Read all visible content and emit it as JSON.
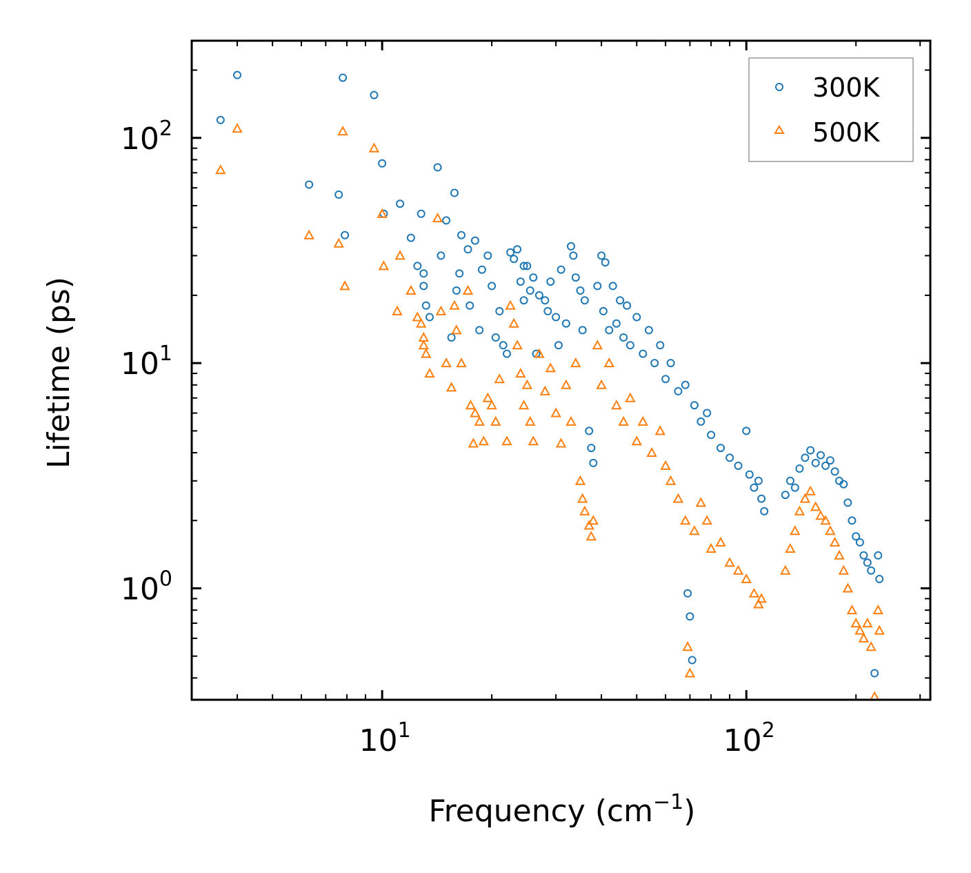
{
  "chart_data": {
    "type": "scatter",
    "xscale": "log",
    "yscale": "log",
    "xlabel": "Frequency (cm",
    "xlabel_sup": "−1",
    "xlabel_suffix": ")",
    "ylabel": "Lifetime (ps)",
    "xlim": [
      3.0,
      320
    ],
    "ylim": [
      0.32,
      270
    ],
    "x_ticks": [
      {
        "base": "10",
        "exp": "1",
        "value": 10
      },
      {
        "base": "10",
        "exp": "2",
        "value": 100
      }
    ],
    "y_ticks": [
      {
        "base": "10",
        "exp": "0",
        "value": 1
      },
      {
        "base": "10",
        "exp": "1",
        "value": 10
      },
      {
        "base": "10",
        "exp": "2",
        "value": 100
      }
    ],
    "legend": {
      "location": "top-right"
    },
    "series": [
      {
        "name": "300K",
        "marker": "circle",
        "color": "#1f77b4",
        "points": [
          [
            3.6,
            120
          ],
          [
            4.0,
            190
          ],
          [
            6.3,
            62
          ],
          [
            7.6,
            56
          ],
          [
            7.8,
            185
          ],
          [
            7.9,
            37
          ],
          [
            9.5,
            155
          ],
          [
            10.0,
            77
          ],
          [
            10.1,
            46
          ],
          [
            11.2,
            51
          ],
          [
            12.0,
            36
          ],
          [
            12.5,
            27
          ],
          [
            12.8,
            46
          ],
          [
            13.0,
            25
          ],
          [
            13.0,
            22
          ],
          [
            13.2,
            18
          ],
          [
            13.5,
            16
          ],
          [
            14.2,
            74
          ],
          [
            14.5,
            30
          ],
          [
            15.0,
            43
          ],
          [
            15.5,
            13
          ],
          [
            15.8,
            57
          ],
          [
            16.0,
            21
          ],
          [
            16.3,
            25
          ],
          [
            16.5,
            37
          ],
          [
            17.2,
            32
          ],
          [
            17.4,
            18
          ],
          [
            18.0,
            35
          ],
          [
            18.5,
            14
          ],
          [
            18.8,
            26
          ],
          [
            19.5,
            30
          ],
          [
            20.0,
            22
          ],
          [
            20.5,
            13
          ],
          [
            21.0,
            17
          ],
          [
            21.5,
            12
          ],
          [
            22.0,
            11
          ],
          [
            22.5,
            31
          ],
          [
            23.0,
            29
          ],
          [
            23.5,
            32
          ],
          [
            24.0,
            23
          ],
          [
            24.5,
            27
          ],
          [
            24.5,
            19
          ],
          [
            25.0,
            27
          ],
          [
            25.5,
            21
          ],
          [
            26.0,
            24
          ],
          [
            26.5,
            11
          ],
          [
            27.0,
            20
          ],
          [
            28.0,
            19
          ],
          [
            28.5,
            17
          ],
          [
            29.0,
            23
          ],
          [
            30.0,
            16
          ],
          [
            30.5,
            12
          ],
          [
            31.0,
            26
          ],
          [
            32.0,
            15
          ],
          [
            33.0,
            33
          ],
          [
            33.5,
            30
          ],
          [
            34.0,
            24
          ],
          [
            35.0,
            21
          ],
          [
            35.5,
            14
          ],
          [
            36.0,
            19
          ],
          [
            37.0,
            5.0
          ],
          [
            37.5,
            4.2
          ],
          [
            38.0,
            3.6
          ],
          [
            39.0,
            22
          ],
          [
            40.0,
            30
          ],
          [
            40.5,
            17
          ],
          [
            41.0,
            28
          ],
          [
            42.0,
            14
          ],
          [
            43.0,
            22
          ],
          [
            44.0,
            15
          ],
          [
            45.0,
            19
          ],
          [
            46.0,
            13
          ],
          [
            47.0,
            18
          ],
          [
            48.0,
            12
          ],
          [
            50.0,
            16
          ],
          [
            52.0,
            11
          ],
          [
            54.0,
            14
          ],
          [
            56.0,
            10
          ],
          [
            58.0,
            12
          ],
          [
            60.0,
            8.5
          ],
          [
            62.0,
            10
          ],
          [
            65.0,
            7.5
          ],
          [
            68.0,
            8
          ],
          [
            69.0,
            0.95
          ],
          [
            70.0,
            0.75
          ],
          [
            71.0,
            0.48
          ],
          [
            72.0,
            6.5
          ],
          [
            75.0,
            5.5
          ],
          [
            78.0,
            6.0
          ],
          [
            80.0,
            4.8
          ],
          [
            85.0,
            4.2
          ],
          [
            90.0,
            3.8
          ],
          [
            95.0,
            3.5
          ],
          [
            100.0,
            5.0
          ],
          [
            102.0,
            3.2
          ],
          [
            105.0,
            2.8
          ],
          [
            108.0,
            3.0
          ],
          [
            110.0,
            2.5
          ],
          [
            112.0,
            2.2
          ],
          [
            128.0,
            2.6
          ],
          [
            132.0,
            3.0
          ],
          [
            136.0,
            2.8
          ],
          [
            140.0,
            3.4
          ],
          [
            145.0,
            3.8
          ],
          [
            150.0,
            4.1
          ],
          [
            155.0,
            3.6
          ],
          [
            160.0,
            3.9
          ],
          [
            165.0,
            3.5
          ],
          [
            170.0,
            3.7
          ],
          [
            175.0,
            3.3
          ],
          [
            180.0,
            3.0
          ],
          [
            185.0,
            2.9
          ],
          [
            190.0,
            2.4
          ],
          [
            195.0,
            2.0
          ],
          [
            200.0,
            1.7
          ],
          [
            205.0,
            1.6
          ],
          [
            210.0,
            1.4
          ],
          [
            215.0,
            1.3
          ],
          [
            220.0,
            1.2
          ],
          [
            225.0,
            0.42
          ],
          [
            230.0,
            1.4
          ],
          [
            232.0,
            1.1
          ]
        ]
      },
      {
        "name": "500K",
        "marker": "triangle",
        "color": "#ff7f0e",
        "points": [
          [
            3.6,
            72
          ],
          [
            4.0,
            110
          ],
          [
            6.3,
            37
          ],
          [
            7.6,
            34
          ],
          [
            7.8,
            107
          ],
          [
            7.9,
            22
          ],
          [
            9.5,
            90
          ],
          [
            10.0,
            46
          ],
          [
            10.1,
            27
          ],
          [
            11.0,
            17
          ],
          [
            11.2,
            30
          ],
          [
            12.0,
            21
          ],
          [
            12.5,
            16
          ],
          [
            12.8,
            15
          ],
          [
            13.0,
            13
          ],
          [
            13.0,
            12
          ],
          [
            13.2,
            11
          ],
          [
            13.5,
            9.0
          ],
          [
            14.2,
            44
          ],
          [
            14.5,
            17
          ],
          [
            15.0,
            10
          ],
          [
            15.5,
            7.8
          ],
          [
            15.8,
            18
          ],
          [
            16.0,
            14
          ],
          [
            16.5,
            10
          ],
          [
            17.2,
            21
          ],
          [
            17.5,
            6.5
          ],
          [
            17.8,
            4.4
          ],
          [
            18.0,
            6.0
          ],
          [
            18.5,
            5.5
          ],
          [
            19.0,
            4.5
          ],
          [
            19.5,
            7.0
          ],
          [
            20.0,
            6.5
          ],
          [
            20.5,
            5.5
          ],
          [
            21.0,
            8.5
          ],
          [
            22.0,
            4.5
          ],
          [
            22.5,
            18
          ],
          [
            23.0,
            15
          ],
          [
            23.5,
            12
          ],
          [
            24.0,
            9
          ],
          [
            24.5,
            6.5
          ],
          [
            25.0,
            8
          ],
          [
            25.5,
            5.5
          ],
          [
            26.0,
            4.5
          ],
          [
            27.0,
            11
          ],
          [
            28.0,
            7.5
          ],
          [
            29.0,
            9.5
          ],
          [
            30.0,
            6
          ],
          [
            31.0,
            4.4
          ],
          [
            32.0,
            8
          ],
          [
            33.0,
            5.5
          ],
          [
            34.0,
            10
          ],
          [
            35.0,
            3.0
          ],
          [
            35.5,
            2.5
          ],
          [
            36.0,
            2.2
          ],
          [
            37.0,
            1.9
          ],
          [
            37.5,
            1.7
          ],
          [
            38.0,
            2.0
          ],
          [
            39.0,
            12
          ],
          [
            40.0,
            8
          ],
          [
            42.0,
            10
          ],
          [
            44.0,
            6.5
          ],
          [
            46.0,
            5.5
          ],
          [
            48.0,
            7
          ],
          [
            50.0,
            4.5
          ],
          [
            52.0,
            5.5
          ],
          [
            55.0,
            4.0
          ],
          [
            58.0,
            5.0
          ],
          [
            60.0,
            3.5
          ],
          [
            62.0,
            3.0
          ],
          [
            65.0,
            2.5
          ],
          [
            68.0,
            2.0
          ],
          [
            69.0,
            0.55
          ],
          [
            70.0,
            0.42
          ],
          [
            72.0,
            1.8
          ],
          [
            75.0,
            2.4
          ],
          [
            78.0,
            2.0
          ],
          [
            80.0,
            1.5
          ],
          [
            85.0,
            1.6
          ],
          [
            90.0,
            1.3
          ],
          [
            95.0,
            1.2
          ],
          [
            100.0,
            1.1
          ],
          [
            105.0,
            0.95
          ],
          [
            108.0,
            0.85
          ],
          [
            110.0,
            0.9
          ],
          [
            128.0,
            1.2
          ],
          [
            132.0,
            1.5
          ],
          [
            136.0,
            1.8
          ],
          [
            140.0,
            2.2
          ],
          [
            145.0,
            2.5
          ],
          [
            150.0,
            2.7
          ],
          [
            155.0,
            2.3
          ],
          [
            160.0,
            2.1
          ],
          [
            165.0,
            2.0
          ],
          [
            170.0,
            1.8
          ],
          [
            175.0,
            1.6
          ],
          [
            180.0,
            1.4
          ],
          [
            185.0,
            1.2
          ],
          [
            190.0,
            1.0
          ],
          [
            195.0,
            0.8
          ],
          [
            200.0,
            0.7
          ],
          [
            205.0,
            0.65
          ],
          [
            210.0,
            0.6
          ],
          [
            215.0,
            0.7
          ],
          [
            220.0,
            0.55
          ],
          [
            225.0,
            0.33
          ],
          [
            230.0,
            0.8
          ],
          [
            232.0,
            0.65
          ]
        ]
      }
    ]
  }
}
